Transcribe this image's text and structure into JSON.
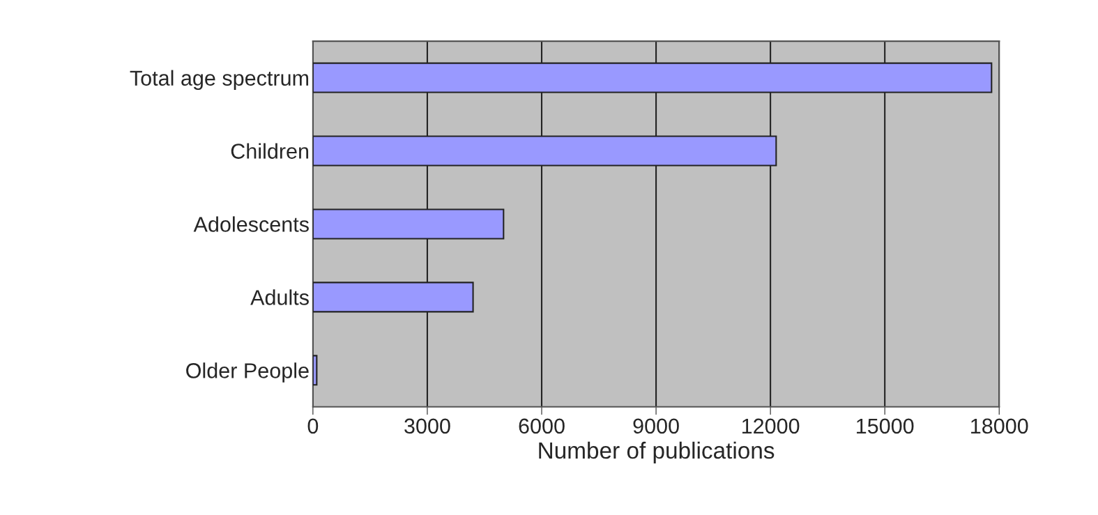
{
  "chart_data": {
    "type": "bar",
    "orientation": "horizontal",
    "xlabel": "Number of publications",
    "categories": [
      "Total age spectrum",
      "Children",
      "Adolescents",
      "Adults",
      "Older People"
    ],
    "values": [
      17800,
      12150,
      5000,
      4200,
      100
    ],
    "color": "#9999ff",
    "xlim": [
      0,
      18000
    ],
    "xticks": [
      0,
      3000,
      6000,
      9000,
      12000,
      15000,
      18000
    ],
    "grid": "x"
  }
}
